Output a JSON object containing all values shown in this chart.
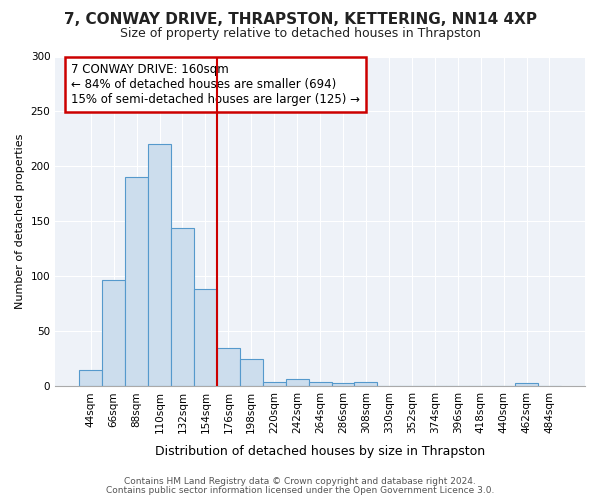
{
  "title1": "7, CONWAY DRIVE, THRAPSTON, KETTERING, NN14 4XP",
  "title2": "Size of property relative to detached houses in Thrapston",
  "xlabel": "Distribution of detached houses by size in Thrapston",
  "ylabel": "Number of detached properties",
  "bar_labels": [
    "44sqm",
    "66sqm",
    "88sqm",
    "110sqm",
    "132sqm",
    "154sqm",
    "176sqm",
    "198sqm",
    "220sqm",
    "242sqm",
    "264sqm",
    "286sqm",
    "308sqm",
    "330sqm",
    "352sqm",
    "374sqm",
    "396sqm",
    "418sqm",
    "440sqm",
    "462sqm",
    "484sqm"
  ],
  "bar_values": [
    15,
    97,
    190,
    220,
    144,
    89,
    35,
    25,
    4,
    7,
    4,
    3,
    4,
    0,
    0,
    0,
    0,
    0,
    0,
    3,
    0
  ],
  "bar_color": "#ccdded",
  "bar_edge_color": "#5599cc",
  "fig_bg_color": "#ffffff",
  "plot_bg_color": "#eef2f8",
  "grid_color": "#ffffff",
  "vline_x": 5.5,
  "vline_color": "#cc0000",
  "annotation_line1": "7 CONWAY DRIVE: 160sqm",
  "annotation_line2": "← 84% of detached houses are smaller (694)",
  "annotation_line3": "15% of semi-detached houses are larger (125) →",
  "annotation_box_color": "#ffffff",
  "annotation_border_color": "#cc0000",
  "ylim": [
    0,
    300
  ],
  "yticks": [
    0,
    50,
    100,
    150,
    200,
    250,
    300
  ],
  "title1_fontsize": 11,
  "title2_fontsize": 9,
  "xlabel_fontsize": 9,
  "ylabel_fontsize": 8,
  "tick_fontsize": 7.5,
  "annot_fontsize": 8.5,
  "footer1": "Contains HM Land Registry data © Crown copyright and database right 2024.",
  "footer2": "Contains public sector information licensed under the Open Government Licence 3.0."
}
